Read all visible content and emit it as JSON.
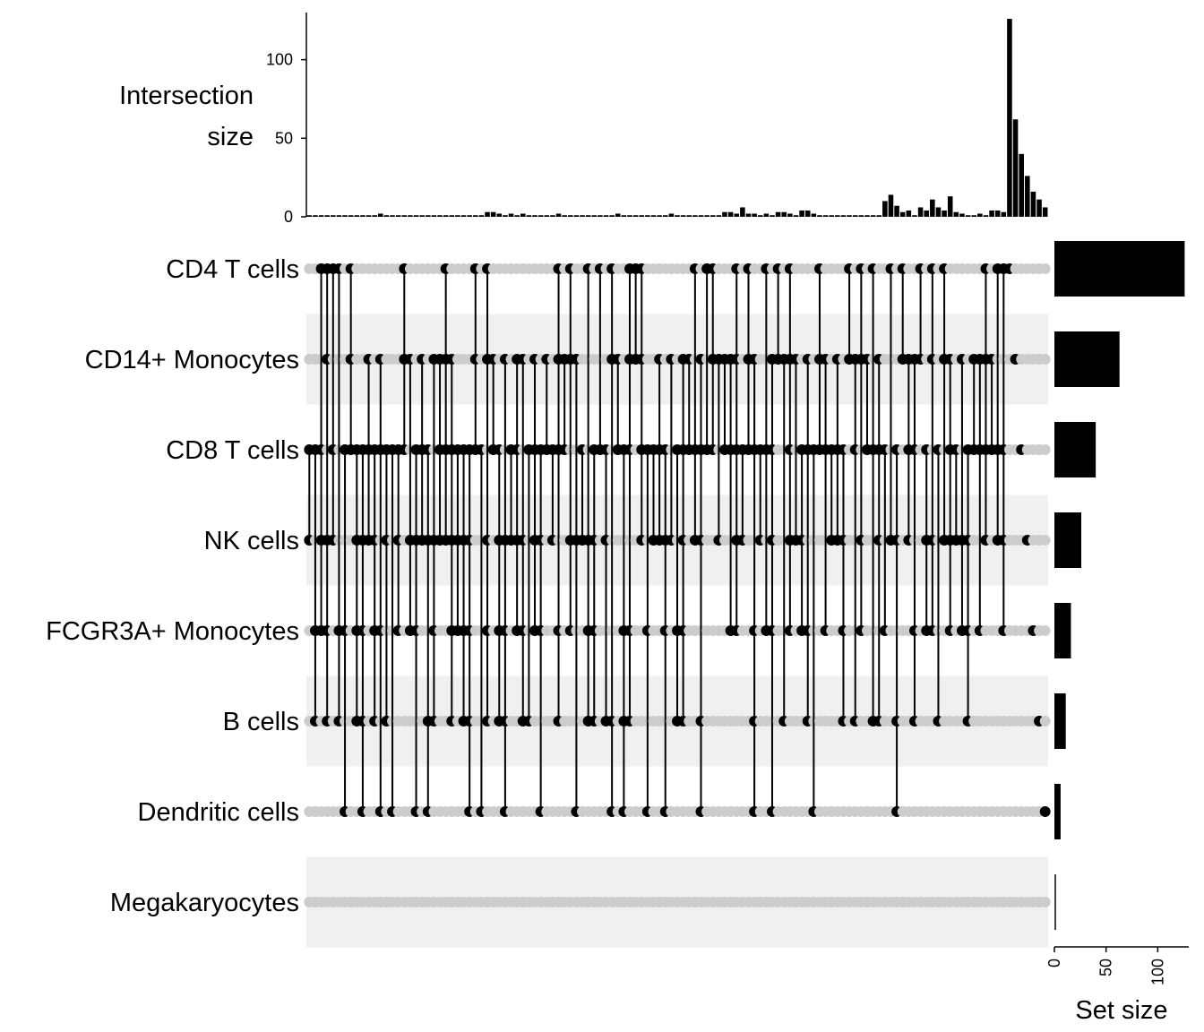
{
  "chart_data": {
    "type": "upset",
    "intersection_axis": {
      "title_lines": [
        "Intersection",
        "size"
      ],
      "ticks": [
        0,
        50,
        100
      ],
      "ylim": [
        0,
        130
      ]
    },
    "set_size_axis": {
      "title": "Set size",
      "ticks": [
        0,
        50,
        100
      ],
      "xlim": [
        0,
        130
      ]
    },
    "sets": [
      {
        "name": "CD4 T cells",
        "size": 126
      },
      {
        "name": "CD14+ Monocytes",
        "size": 63
      },
      {
        "name": "CD8 T cells",
        "size": 40
      },
      {
        "name": "NK cells",
        "size": 26
      },
      {
        "name": "FCGR3A+ Monocytes",
        "size": 16
      },
      {
        "name": "B cells",
        "size": 11
      },
      {
        "name": "Dendritic cells",
        "size": 6
      },
      {
        "name": "Megakaryocytes",
        "size": 0
      }
    ],
    "intersection_sizes": [
      1,
      1,
      1,
      1,
      1,
      1,
      1,
      1,
      1,
      1,
      1,
      1,
      2,
      1,
      1,
      1,
      1,
      1,
      1,
      1,
      1,
      1,
      1,
      1,
      1,
      1,
      1,
      1,
      1,
      1,
      3,
      3,
      2,
      1,
      2,
      1,
      2,
      1,
      1,
      1,
      1,
      1,
      2,
      1,
      1,
      1,
      1,
      1,
      1,
      1,
      1,
      1,
      2,
      1,
      1,
      1,
      1,
      1,
      1,
      1,
      1,
      2,
      1,
      1,
      1,
      1,
      1,
      1,
      1,
      1,
      3,
      3,
      2,
      6,
      2,
      2,
      1,
      2,
      1,
      3,
      3,
      2,
      1,
      4,
      4,
      2,
      1,
      1,
      1,
      1,
      1,
      1,
      1,
      1,
      1,
      1,
      1,
      10,
      14,
      7,
      3,
      4,
      1,
      6,
      4,
      11,
      6,
      4,
      13,
      3,
      2,
      1,
      1,
      2,
      1,
      4,
      4,
      3,
      126,
      62,
      40,
      26,
      16,
      11,
      6
    ],
    "grid_on": true
  }
}
